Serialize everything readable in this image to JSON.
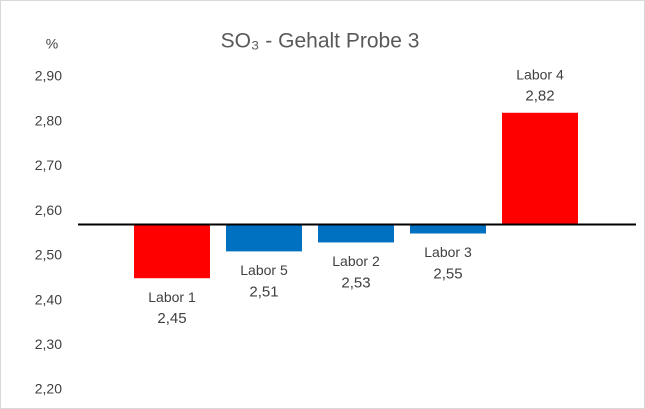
{
  "chart_data": {
    "type": "bar",
    "title": "SO₃ - Gehalt Probe 3",
    "y_unit": "%",
    "categories": [
      "Labor 1",
      "Labor 5",
      "Labor 2",
      "Labor 3",
      "Labor 4"
    ],
    "values": [
      2.45,
      2.51,
      2.53,
      2.55,
      2.82
    ],
    "value_labels": [
      "2,45",
      "2,51",
      "2,53",
      "2,55",
      "2,82"
    ],
    "colors": [
      "#ff0000",
      "#0070c0",
      "#0070c0",
      "#0070c0",
      "#ff0000"
    ],
    "baseline": 2.57,
    "ylim": [
      2.2,
      2.9
    ],
    "yticks": [
      {
        "value": 2.2,
        "label": "2,20"
      },
      {
        "value": 2.3,
        "label": "2,30"
      },
      {
        "value": 2.4,
        "label": "2,40"
      },
      {
        "value": 2.5,
        "label": "2,50"
      },
      {
        "value": 2.6,
        "label": "2,60"
      },
      {
        "value": 2.7,
        "label": "2,70"
      },
      {
        "value": 2.8,
        "label": "2,80"
      },
      {
        "value": 2.9,
        "label": "2,90"
      }
    ],
    "grid": false
  }
}
